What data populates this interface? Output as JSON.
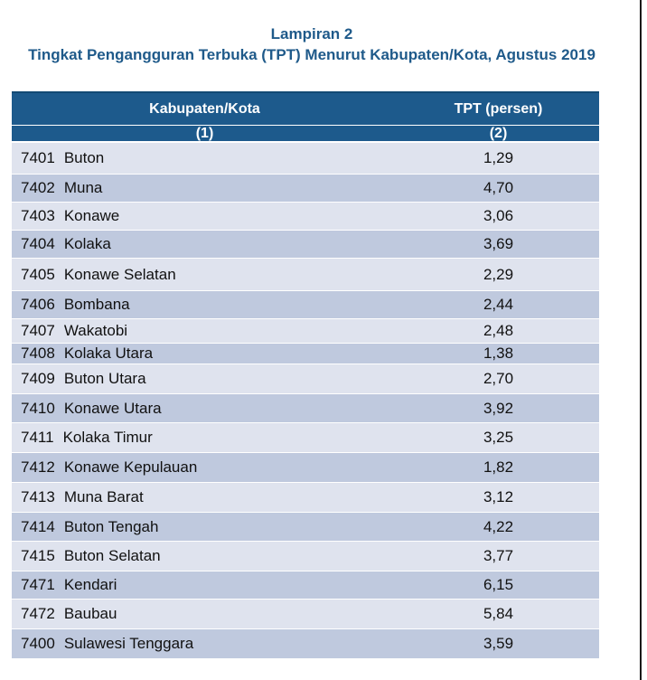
{
  "title": {
    "line1": "Lampiran 2",
    "line2": "Tingkat Pengangguran Terbuka (TPT) Menurut Kabupaten/Kota, Agustus 2019"
  },
  "table": {
    "header": {
      "col1": "Kabupaten/Kota",
      "col2": "TPT (persen)",
      "col1_num": "(1)",
      "col2_num": "(2)"
    },
    "rows": [
      {
        "code": "7401",
        "name": "Buton",
        "tpt": "1,29"
      },
      {
        "code": "7402",
        "name": "Muna",
        "tpt": "4,70"
      },
      {
        "code": "7403",
        "name": "Konawe",
        "tpt": "3,06"
      },
      {
        "code": "7404",
        "name": "Kolaka",
        "tpt": "3,69"
      },
      {
        "code": "7405",
        "name": "Konawe Selatan",
        "tpt": "2,29"
      },
      {
        "code": "7406",
        "name": "Bombana",
        "tpt": "2,44"
      },
      {
        "code": "7407",
        "name": "Wakatobi",
        "tpt": "2,48"
      },
      {
        "code": "7408",
        "name": "Kolaka Utara",
        "tpt": "1,38"
      },
      {
        "code": "7409",
        "name": "Buton Utara",
        "tpt": "2,70"
      },
      {
        "code": "7410",
        "name": "Konawe Utara",
        "tpt": "3,92"
      },
      {
        "code": "7411",
        "name": "Kolaka Timur",
        "tpt": "3,25"
      },
      {
        "code": "7412",
        "name": "Konawe Kepulauan",
        "tpt": "1,82"
      },
      {
        "code": "7413",
        "name": "Muna Barat",
        "tpt": "3,12"
      },
      {
        "code": "7414",
        "name": "Buton Tengah",
        "tpt": "4,22"
      },
      {
        "code": "7415",
        "name": "Buton Selatan",
        "tpt": "3,77"
      },
      {
        "code": "7471",
        "name": "Kendari",
        "tpt": "6,15"
      },
      {
        "code": "7472",
        "name": "Baubau",
        "tpt": "5,84"
      },
      {
        "code": "7400",
        "name": "Sulawesi Tenggara",
        "tpt": "3,59"
      }
    ]
  }
}
